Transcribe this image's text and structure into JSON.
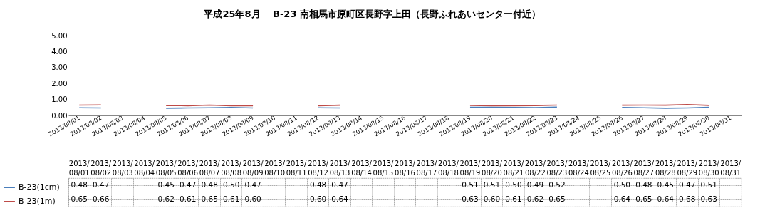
{
  "chart_data": {
    "type": "line",
    "title": "平成25年8月　 B-23 南相馬市原町区長野字上田（長野ふれあいセンター付近）",
    "categories": [
      "2013/08/01",
      "2013/08/02",
      "2013/08/03",
      "2013/08/04",
      "2013/08/05",
      "2013/08/06",
      "2013/08/07",
      "2013/08/08",
      "2013/08/09",
      "2013/08/10",
      "2013/08/11",
      "2013/08/12",
      "2013/08/13",
      "2013/08/14",
      "2013/08/15",
      "2013/08/16",
      "2013/08/17",
      "2013/08/18",
      "2013/08/19",
      "2013/08/20",
      "2013/08/21",
      "2013/08/22",
      "2013/08/23",
      "2013/08/24",
      "2013/08/25",
      "2013/08/26",
      "2013/08/27",
      "2013/08/28",
      "2013/08/29",
      "2013/08/30",
      "2013/08/31"
    ],
    "series": [
      {
        "name": "B-23(1cm)",
        "color": "#4a7ebb",
        "values": [
          0.48,
          0.47,
          null,
          null,
          0.45,
          0.47,
          0.48,
          0.5,
          0.47,
          null,
          null,
          0.48,
          0.47,
          null,
          null,
          null,
          null,
          null,
          0.51,
          0.51,
          0.5,
          0.49,
          0.52,
          null,
          null,
          0.5,
          0.48,
          0.45,
          0.47,
          0.51,
          null
        ],
        "value_labels": [
          "0.48",
          "0.47",
          null,
          null,
          "0.45",
          "0.47",
          "0.48",
          "0.50",
          "0.47",
          null,
          null,
          "0.48",
          "0.47",
          null,
          null,
          null,
          null,
          null,
          "0.51",
          "0.51",
          "0.50",
          "0.49",
          "0.52",
          null,
          null,
          "0.50",
          "0.48",
          "0.45",
          "0.47",
          "0.51",
          null
        ]
      },
      {
        "name": "B-23(1m)",
        "color": "#be4b48",
        "values": [
          0.65,
          0.66,
          null,
          null,
          0.62,
          0.61,
          0.65,
          0.61,
          0.6,
          null,
          null,
          0.6,
          0.64,
          null,
          null,
          null,
          null,
          null,
          0.63,
          0.6,
          0.61,
          0.62,
          0.65,
          null,
          null,
          0.64,
          0.65,
          0.64,
          0.68,
          0.63,
          null
        ],
        "value_labels": [
          "0.65",
          "0.66",
          null,
          null,
          "0.62",
          "0.61",
          "0.65",
          "0.61",
          "0.60",
          null,
          null,
          "0.60",
          "0.64",
          null,
          null,
          null,
          null,
          null,
          "0.63",
          "0.60",
          "0.61",
          "0.62",
          "0.65",
          null,
          null,
          "0.64",
          "0.65",
          "0.64",
          "0.68",
          "0.63",
          null
        ]
      }
    ],
    "ylim": [
      0,
      5
    ],
    "yticks": [
      {
        "value": 0,
        "label": "0.00"
      },
      {
        "value": 1,
        "label": "1.00"
      },
      {
        "value": 2,
        "label": "2.00"
      },
      {
        "value": 3,
        "label": "3.00"
      },
      {
        "value": 4,
        "label": "4.00"
      },
      {
        "value": 5,
        "label": "5.00"
      }
    ],
    "grid": false,
    "marker": "none",
    "line_style": "solid",
    "legend": "bottom left"
  }
}
